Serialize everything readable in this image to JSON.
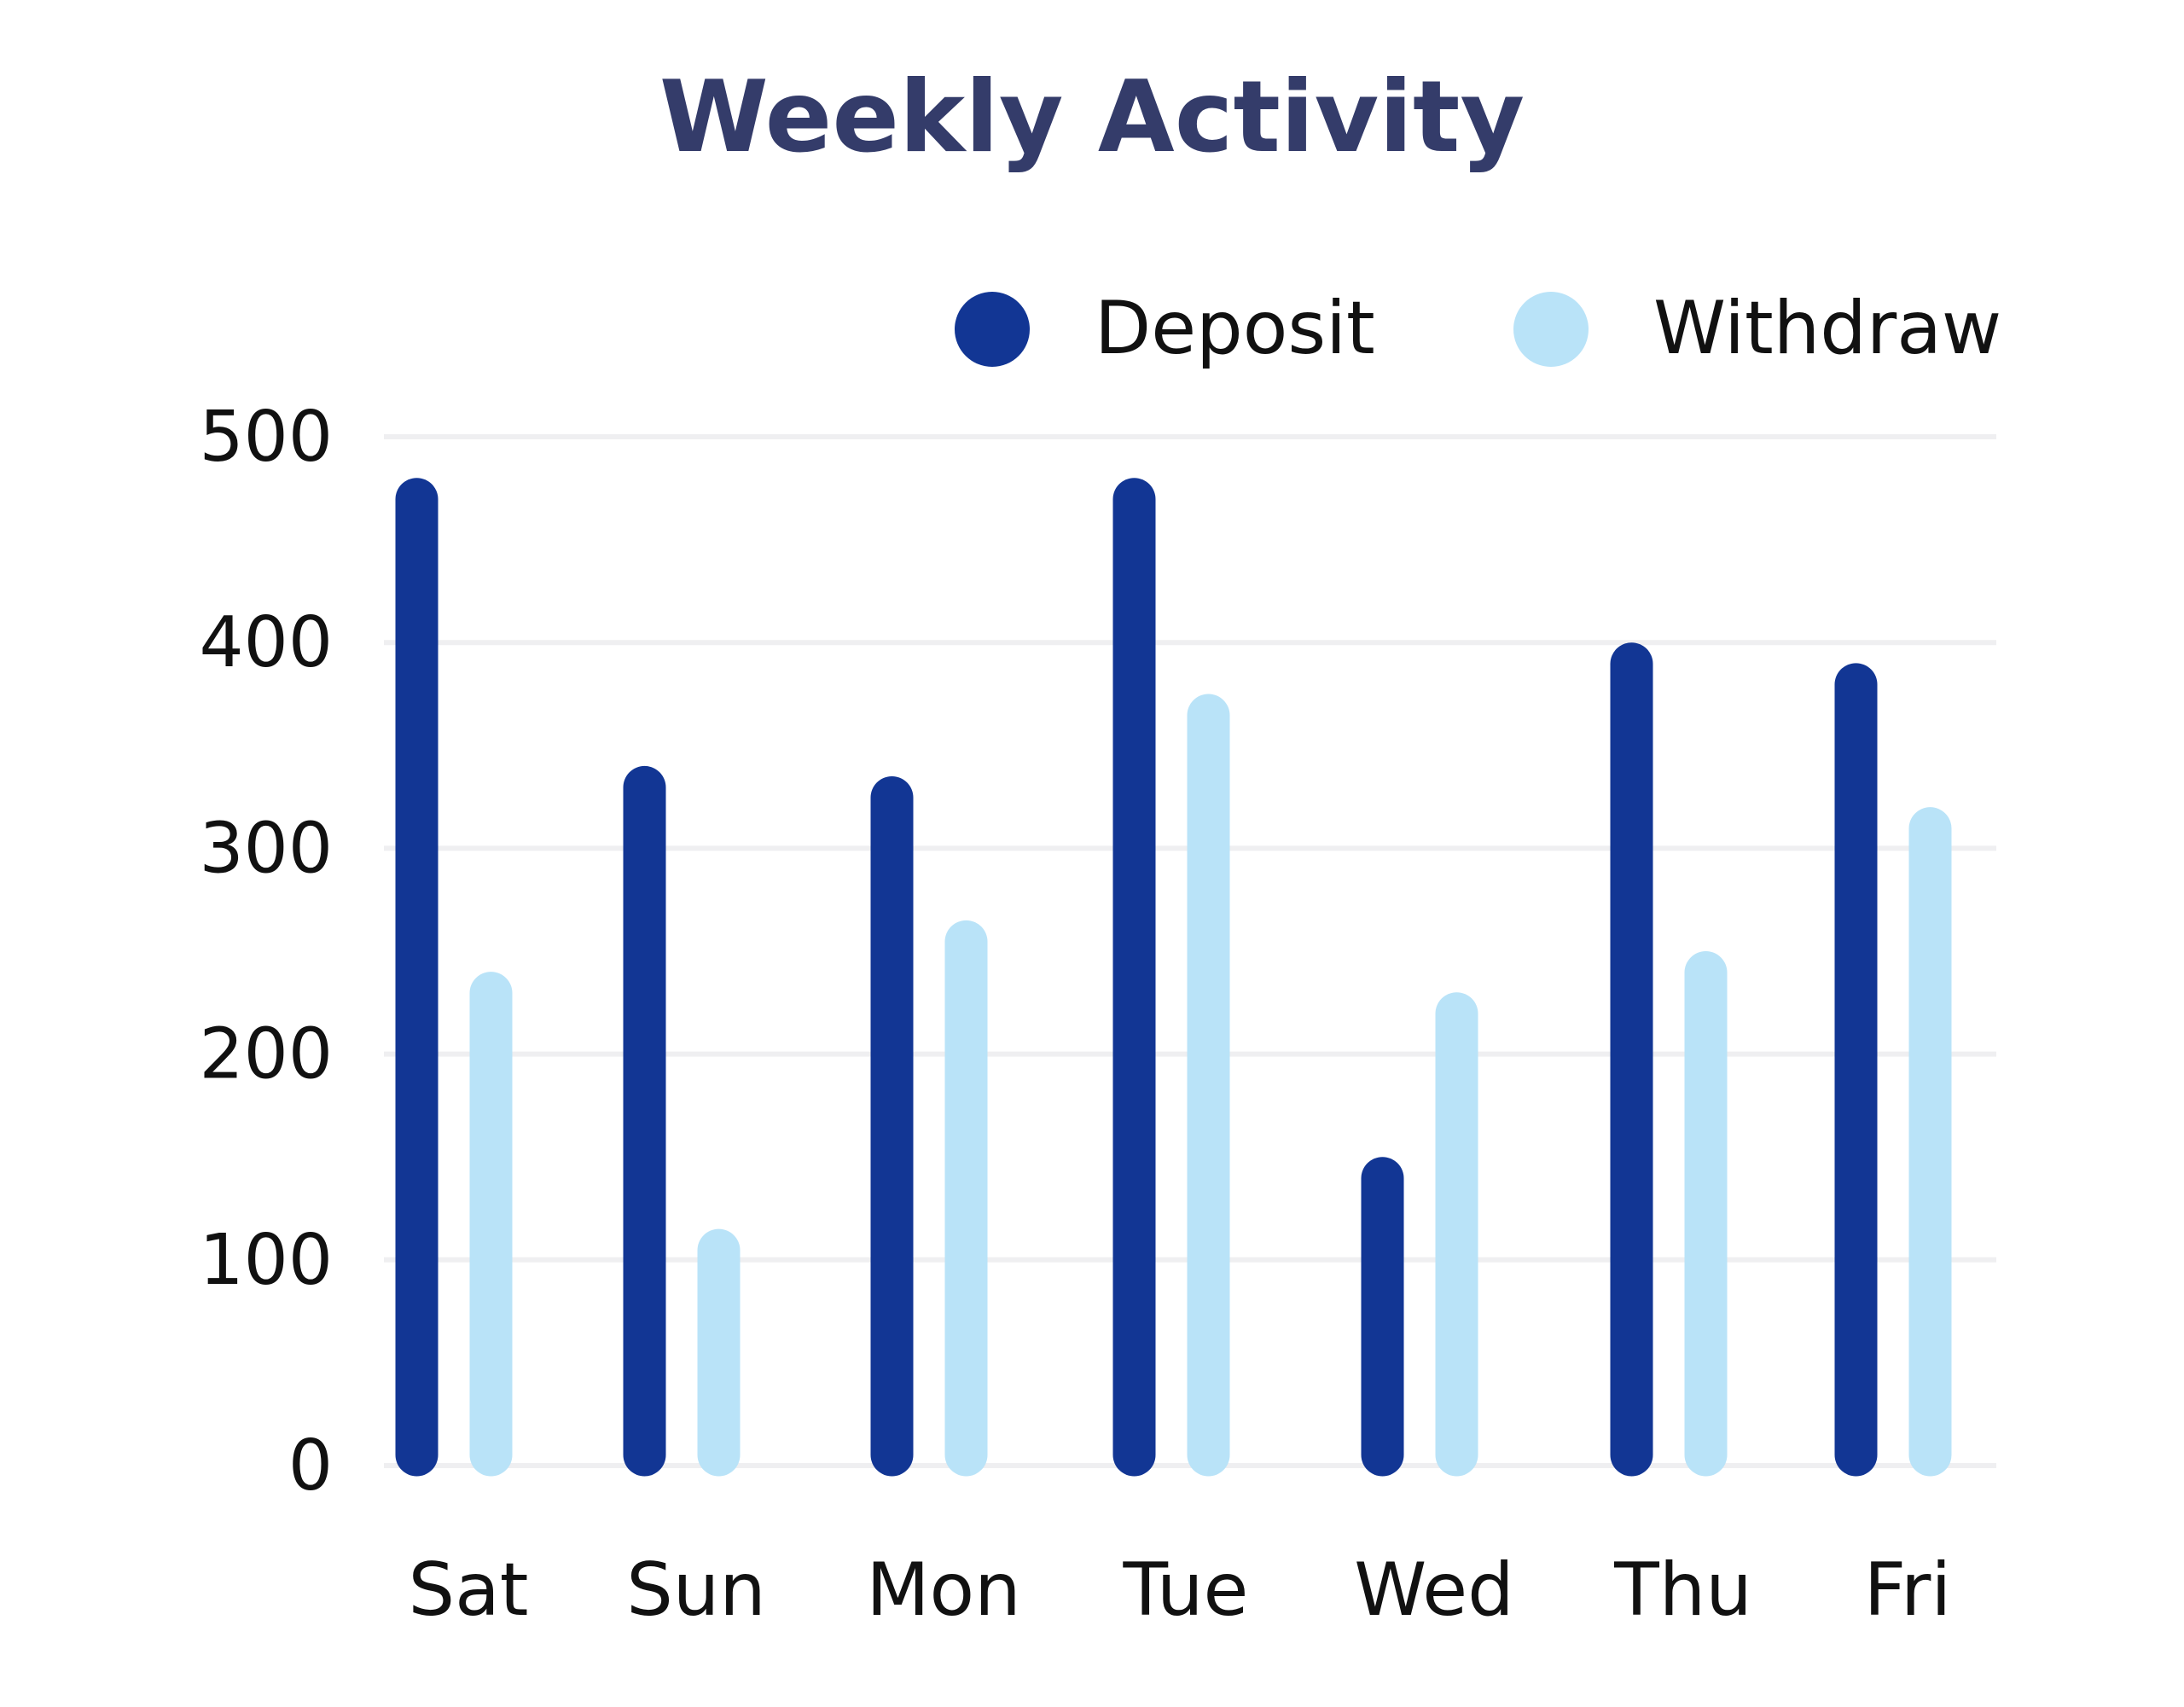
{
  "chart_data": {
    "type": "bar",
    "title": "Weekly Activity",
    "categories": [
      "Sat",
      "Sun",
      "Mon",
      "Tue",
      "Wed",
      "Thu",
      "Fri"
    ],
    "series": [
      {
        "name": "Deposit",
        "color": "#123694",
        "values": [
          480,
          340,
          335,
          480,
          150,
          400,
          390
        ]
      },
      {
        "name": "Withdraw",
        "color": "#b9e3f8",
        "values": [
          240,
          115,
          265,
          375,
          230,
          250,
          320
        ]
      }
    ],
    "yticks": [
      0,
      100,
      200,
      300,
      400,
      500
    ],
    "ylim": [
      0,
      500
    ],
    "grid": true,
    "gridColor": "#efeff1",
    "legend": "top-right",
    "xlabel": "",
    "ylabel": ""
  }
}
